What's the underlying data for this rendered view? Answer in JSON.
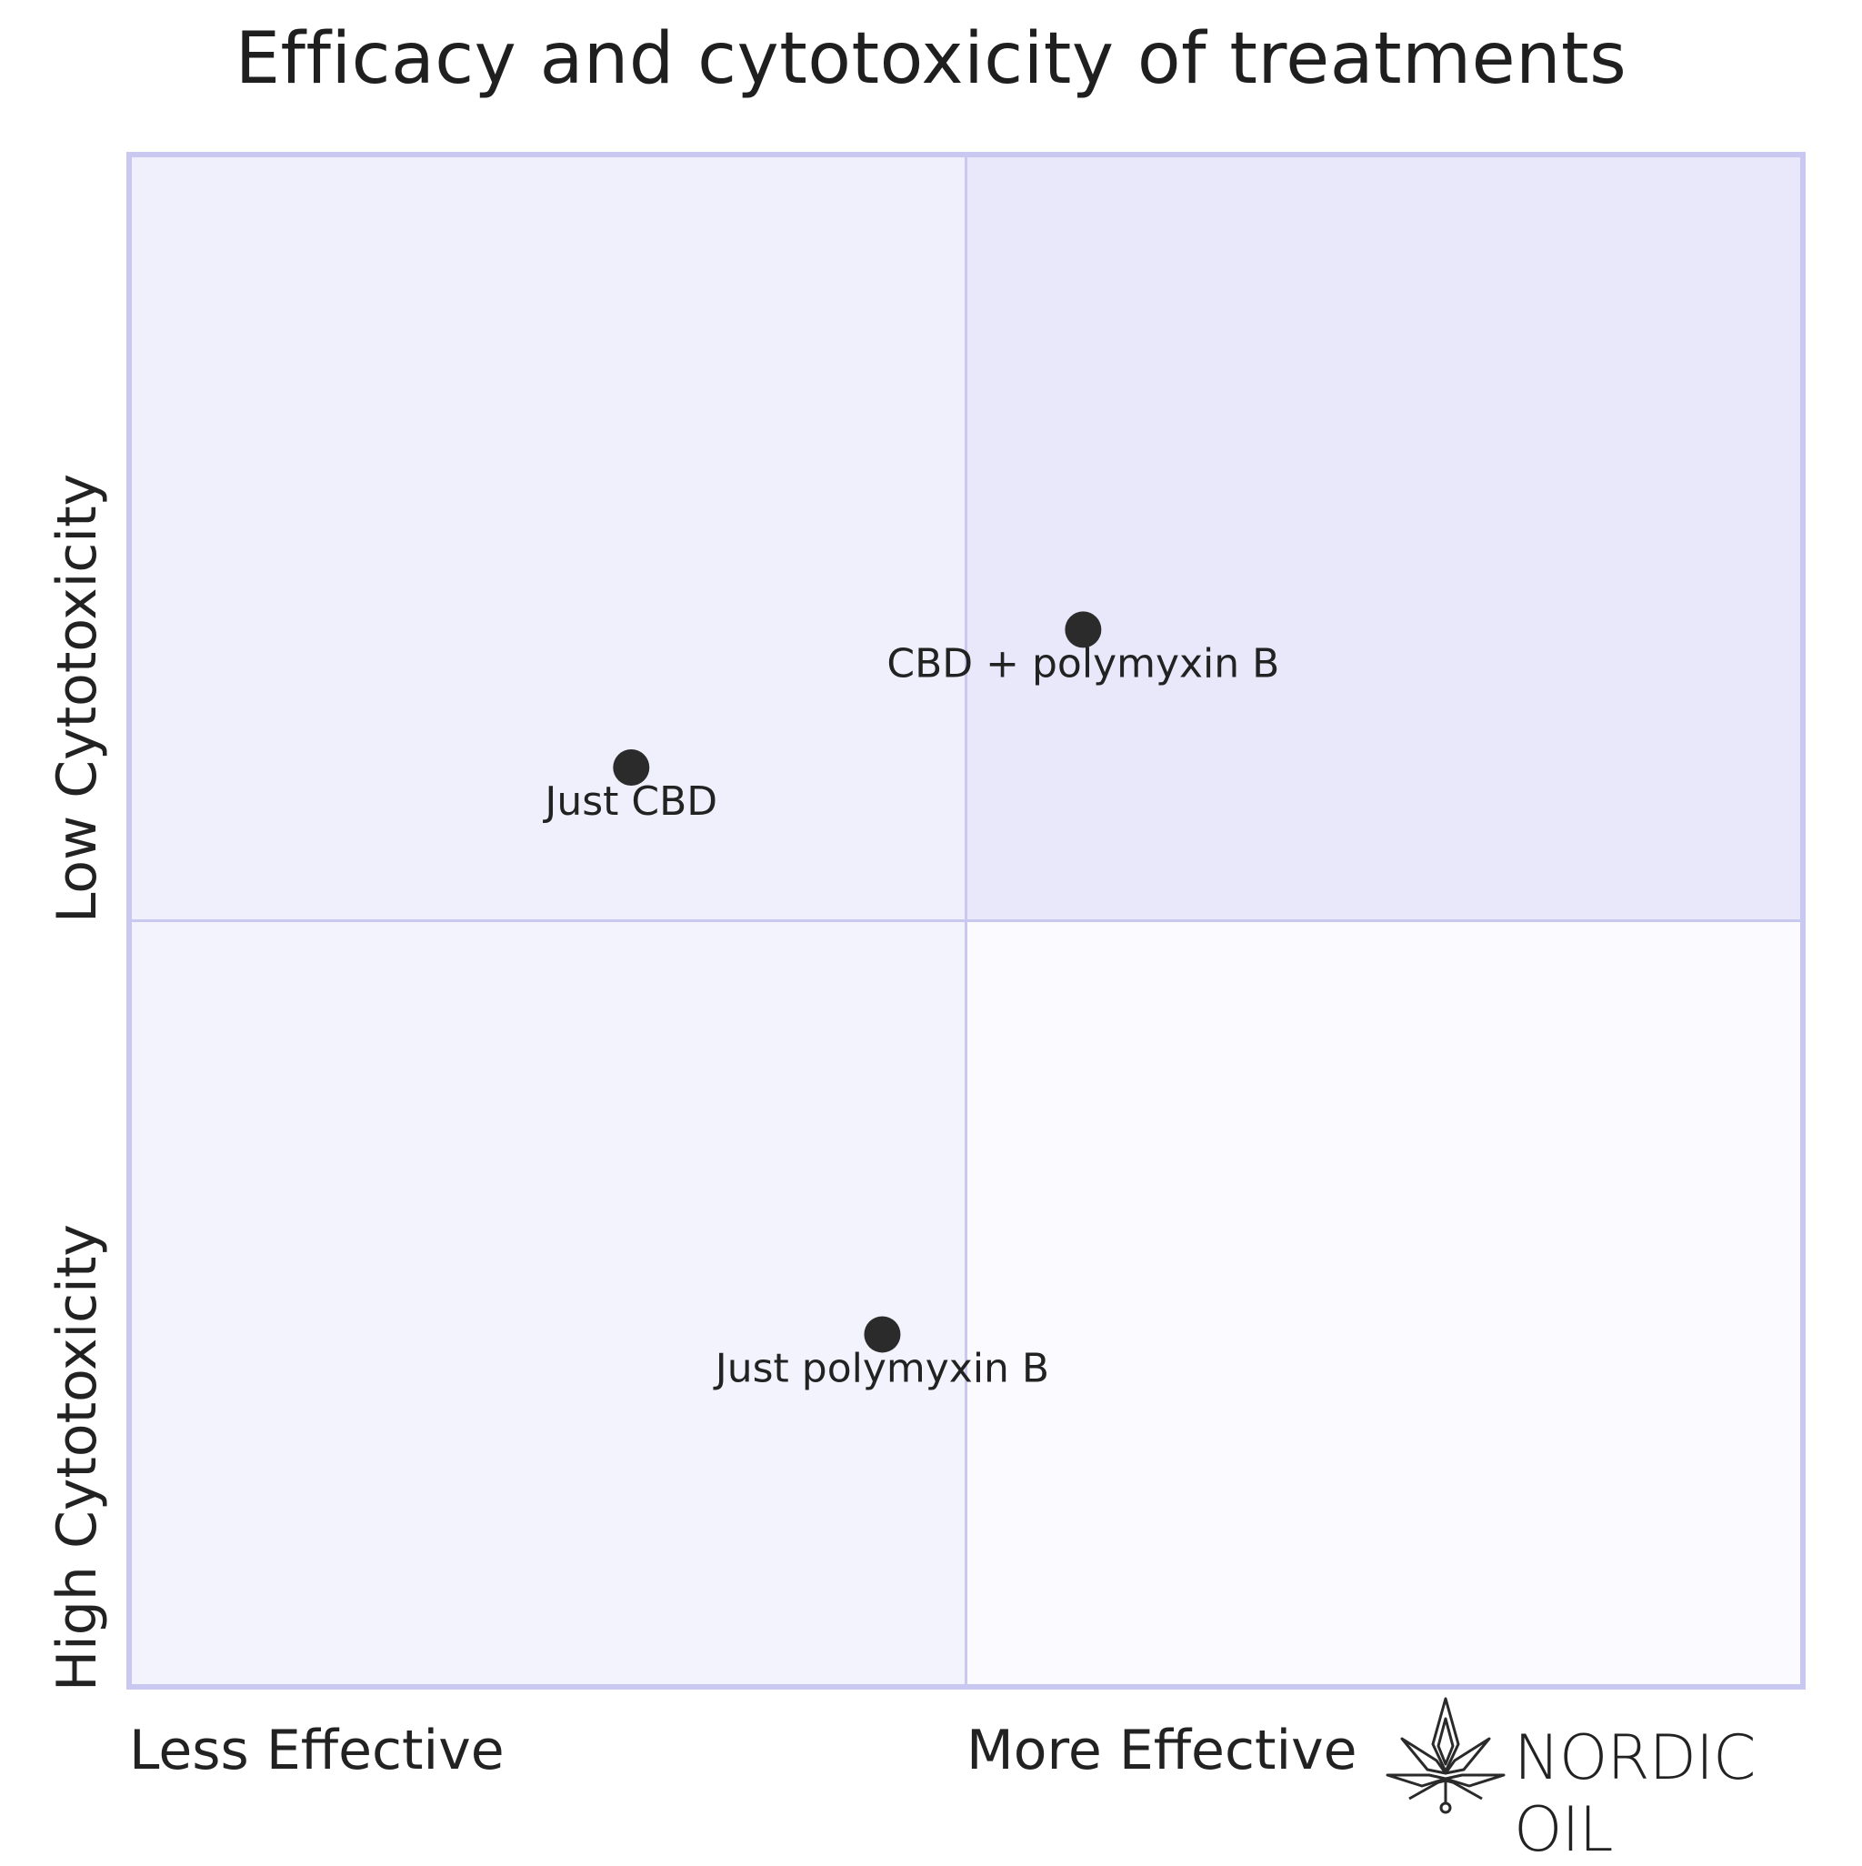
{
  "chart_data": {
    "type": "scatter",
    "title": "Efficacy and cytotoxicity of treatments",
    "x_axis": {
      "left_label": "Less Effective",
      "right_label": "More Effective",
      "range": [
        0,
        1
      ]
    },
    "y_axis": {
      "bottom_label": "High Cytotoxicity",
      "top_label": "Low Cytotoxicity",
      "range": [
        0,
        1
      ]
    },
    "quadrant_colors": {
      "top_right": "#e8e8fa",
      "top_left": "#f0f0fc",
      "bottom_left": "#f3f3fd",
      "bottom_right": "#fafaff"
    },
    "border_color": "#c8c8f0",
    "point_color": "#2b2b2b",
    "points": [
      {
        "label": "CBD + polymyxin B",
        "x": 0.57,
        "y": 0.69
      },
      {
        "label": "Just CBD",
        "x": 0.3,
        "y": 0.6
      },
      {
        "label": "Just polymyxin B",
        "x": 0.45,
        "y": 0.23
      }
    ]
  },
  "brand": {
    "name": "NORDIC OIL",
    "icon": "cannabis-leaf-icon"
  }
}
